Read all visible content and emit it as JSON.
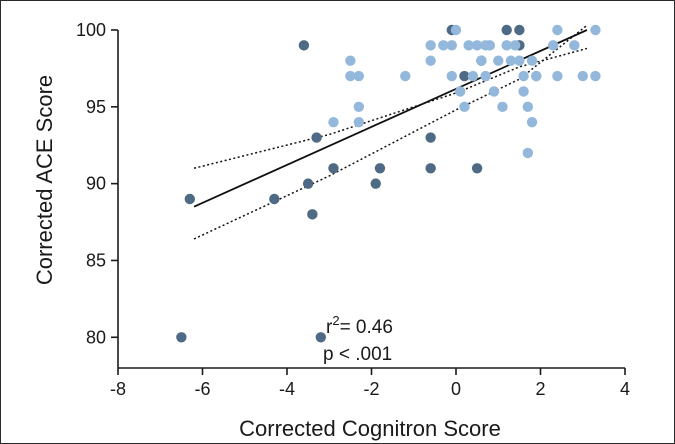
{
  "chart_data": {
    "type": "scatter",
    "xlabel": "Corrected Cognitron Score",
    "ylabel": "Corrected ACE Score",
    "xlim": [
      -8,
      4
    ],
    "ylim": [
      78,
      100
    ],
    "xticks": [
      -8,
      -6,
      -4,
      -2,
      0,
      2,
      4
    ],
    "yticks": [
      80,
      85,
      90,
      95,
      100
    ],
    "grid": false,
    "colors": {
      "dark": "#4e6a84",
      "light": "#93b8db",
      "fit": "#111111"
    },
    "annotation": {
      "r2": "r²= 0.46",
      "p": "p < .001"
    },
    "fit_line": {
      "x": [
        -6.2,
        3.1
      ],
      "y": [
        88.5,
        100
      ]
    },
    "confidence_upper": {
      "x": [
        -6.2,
        -3,
        0,
        1.5,
        3.1
      ],
      "y": [
        91,
        93.2,
        95.9,
        97.6,
        98.8
      ]
    },
    "confidence_lower": {
      "x": [
        -6.2,
        -3,
        0,
        1.5,
        3.1
      ],
      "y": [
        86.4,
        90.5,
        94.8,
        96.8,
        100.3
      ]
    },
    "series": [
      {
        "color": "dark",
        "points": [
          [
            -6.5,
            80
          ],
          [
            -6.3,
            89
          ],
          [
            -4.3,
            89
          ],
          [
            -3.6,
            99
          ],
          [
            -3.5,
            90
          ],
          [
            -3.4,
            88
          ],
          [
            -3.3,
            93
          ],
          [
            -3.2,
            80
          ],
          [
            -2.9,
            91
          ],
          [
            -1.9,
            90
          ],
          [
            -1.8,
            91
          ],
          [
            -0.6,
            93
          ],
          [
            -0.6,
            91
          ],
          [
            -0.1,
            100
          ],
          [
            0.5,
            91
          ],
          [
            0.6,
            98
          ],
          [
            1.2,
            100
          ],
          [
            1.5,
            100
          ],
          [
            1.5,
            99
          ],
          [
            0.2,
            97
          ]
        ]
      },
      {
        "color": "light",
        "points": [
          [
            -2.5,
            98
          ],
          [
            -2.5,
            97
          ],
          [
            -2.3,
            97
          ],
          [
            -2.3,
            95
          ],
          [
            -2.3,
            94
          ],
          [
            -2.9,
            94
          ],
          [
            -1.2,
            97
          ],
          [
            -0.6,
            99
          ],
          [
            -0.6,
            98
          ],
          [
            -0.3,
            99
          ],
          [
            -0.1,
            99
          ],
          [
            0,
            100
          ],
          [
            -0.1,
            97
          ],
          [
            0.1,
            96
          ],
          [
            0.2,
            95
          ],
          [
            0.3,
            99
          ],
          [
            0.4,
            97
          ],
          [
            0.5,
            99
          ],
          [
            0.6,
            98
          ],
          [
            0.7,
            97
          ],
          [
            0.8,
            99
          ],
          [
            0.9,
            96
          ],
          [
            1.1,
            95
          ],
          [
            1.2,
            99
          ],
          [
            1.3,
            98
          ],
          [
            1.4,
            99
          ],
          [
            1.6,
            97
          ],
          [
            1.6,
            96
          ],
          [
            1.7,
            95
          ],
          [
            1.7,
            92
          ],
          [
            1.8,
            94
          ],
          [
            1.8,
            98
          ],
          [
            1.9,
            97
          ],
          [
            2.3,
            99
          ],
          [
            2.4,
            100
          ],
          [
            2.4,
            97
          ],
          [
            2.8,
            99
          ],
          [
            3.0,
            97
          ],
          [
            3.3,
            100
          ],
          [
            3.3,
            97
          ],
          [
            1.0,
            98
          ],
          [
            0.7,
            99
          ],
          [
            1.5,
            98
          ],
          [
            1.9,
            97
          ]
        ]
      }
    ]
  }
}
